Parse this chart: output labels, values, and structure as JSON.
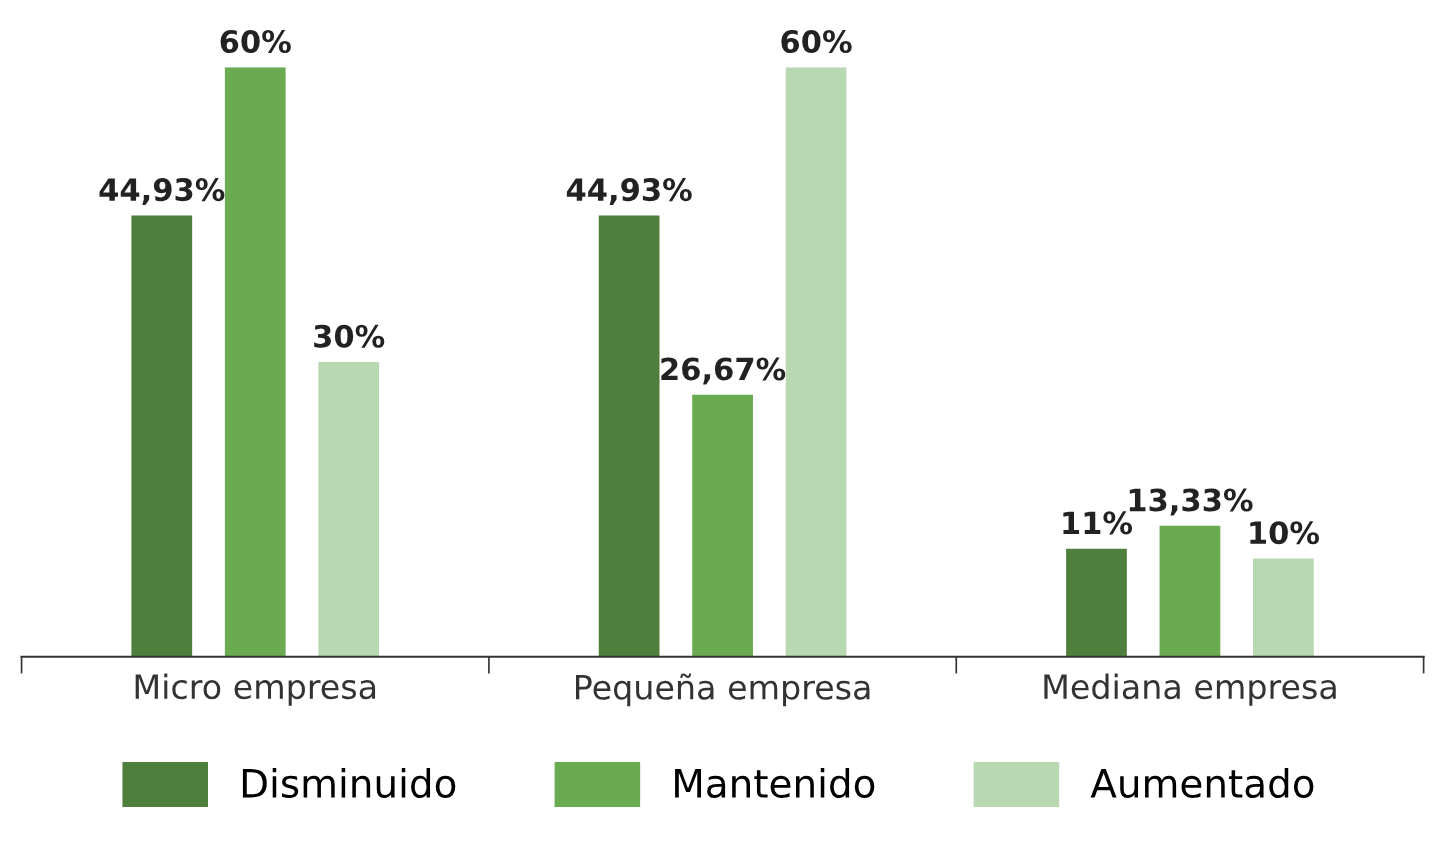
{
  "chart_data": {
    "type": "bar",
    "categories": [
      "Micro empresa",
      "Pequeña empresa",
      "Mediana empresa"
    ],
    "series": [
      {
        "name": "Disminuido",
        "color": "#4f7f3d",
        "values": [
          44.93,
          44.93,
          11
        ],
        "value_labels": [
          "44,93%",
          "44,93%",
          "11%"
        ]
      },
      {
        "name": "Mantenido",
        "color": "#6aab51",
        "values": [
          60,
          26.67,
          13.33
        ],
        "value_labels": [
          "60%",
          "26,67%",
          "13,33%"
        ]
      },
      {
        "name": "Aumentado",
        "color": "#b8d8b1",
        "values": [
          30,
          60,
          10
        ],
        "value_labels": [
          "30%",
          "60%",
          "10%"
        ]
      }
    ],
    "legend": "bottom",
    "grid": false
  }
}
